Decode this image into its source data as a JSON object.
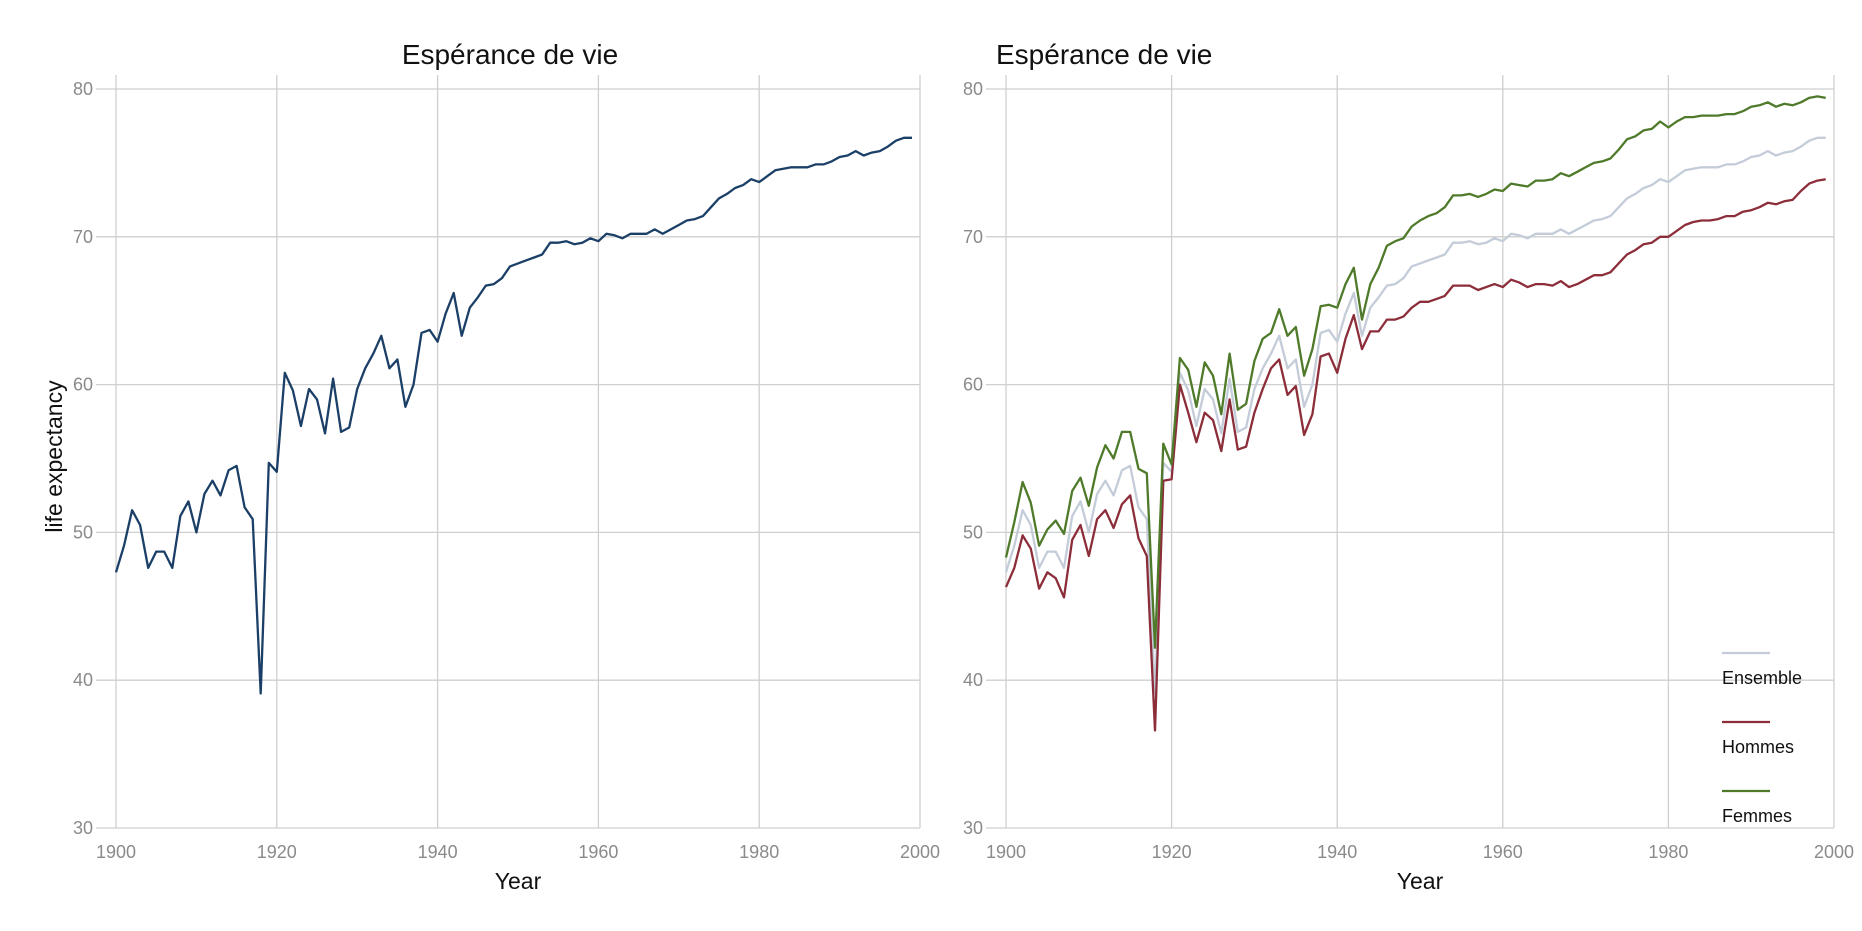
{
  "chart_data": [
    {
      "type": "line",
      "title": "Espérance de vie",
      "xlabel": "Year",
      "ylabel": "life expectancy",
      "xlim": [
        1900,
        2000
      ],
      "ylim": [
        30,
        80
      ],
      "x_ticks": [
        "1900",
        "1920",
        "1940",
        "1960",
        "1980",
        "2000"
      ],
      "y_ticks": [
        "30",
        "40",
        "50",
        "60",
        "70",
        "80"
      ],
      "grid": true,
      "legend": "none",
      "series": [
        {
          "color": "#1b3f66",
          "x": [
            1900,
            1901,
            1902,
            1903,
            1904,
            1905,
            1906,
            1907,
            1908,
            1909,
            1910,
            1911,
            1912,
            1913,
            1914,
            1915,
            1916,
            1917,
            1918,
            1919,
            1920,
            1921,
            1922,
            1923,
            1924,
            1925,
            1926,
            1927,
            1928,
            1929,
            1930,
            1931,
            1932,
            1933,
            1934,
            1935,
            1936,
            1937,
            1938,
            1939,
            1940,
            1941,
            1942,
            1943,
            1944,
            1945,
            1946,
            1947,
            1948,
            1949,
            1950,
            1951,
            1952,
            1953,
            1954,
            1955,
            1956,
            1957,
            1958,
            1959,
            1960,
            1961,
            1962,
            1963,
            1964,
            1965,
            1966,
            1967,
            1968,
            1969,
            1970,
            1971,
            1972,
            1973,
            1974,
            1975,
            1976,
            1977,
            1978,
            1979,
            1980,
            1981,
            1982,
            1983,
            1984,
            1985,
            1986,
            1987,
            1988,
            1989,
            1990,
            1991,
            1992,
            1993,
            1994,
            1995,
            1996,
            1997,
            1998,
            1999
          ],
          "values": [
            47.3,
            49.1,
            51.5,
            50.5,
            47.6,
            48.7,
            48.7,
            47.6,
            51.1,
            52.1,
            50.0,
            52.6,
            53.5,
            52.5,
            54.2,
            54.5,
            51.7,
            50.9,
            39.1,
            54.7,
            54.1,
            60.8,
            59.6,
            57.2,
            59.7,
            59.0,
            56.7,
            60.4,
            56.8,
            57.1,
            59.7,
            61.1,
            62.1,
            63.3,
            61.1,
            61.7,
            58.5,
            60.0,
            63.5,
            63.7,
            62.9,
            64.8,
            66.2,
            63.3,
            65.2,
            65.9,
            66.7,
            66.8,
            67.2,
            68.0,
            68.2,
            68.4,
            68.6,
            68.8,
            69.6,
            69.6,
            69.7,
            69.5,
            69.6,
            69.9,
            69.7,
            70.2,
            70.1,
            69.9,
            70.2,
            70.2,
            70.2,
            70.5,
            70.2,
            70.5,
            70.8,
            71.1,
            71.2,
            71.4,
            72.0,
            72.6,
            72.9,
            73.3,
            73.5,
            73.9,
            73.7,
            74.1,
            74.5,
            74.6,
            74.7,
            74.7,
            74.7,
            74.9,
            74.9,
            75.1,
            75.4,
            75.5,
            75.8,
            75.5,
            75.7,
            75.8,
            76.1,
            76.5,
            76.7,
            76.7
          ]
        }
      ]
    },
    {
      "type": "line",
      "title": "Espérance de vie",
      "xlabel": "Year",
      "ylabel": "",
      "xlim": [
        1900,
        2000
      ],
      "ylim": [
        30,
        80
      ],
      "x_ticks": [
        "1900",
        "1920",
        "1940",
        "1960",
        "1980",
        "2000"
      ],
      "y_ticks": [
        "30",
        "40",
        "50",
        "60",
        "70",
        "80"
      ],
      "grid": true,
      "legend": "bottom-right",
      "series": [
        {
          "name": "Ensemble",
          "color": "#c3ccd8",
          "x": [
            1900,
            1901,
            1902,
            1903,
            1904,
            1905,
            1906,
            1907,
            1908,
            1909,
            1910,
            1911,
            1912,
            1913,
            1914,
            1915,
            1916,
            1917,
            1918,
            1919,
            1920,
            1921,
            1922,
            1923,
            1924,
            1925,
            1926,
            1927,
            1928,
            1929,
            1930,
            1931,
            1932,
            1933,
            1934,
            1935,
            1936,
            1937,
            1938,
            1939,
            1940,
            1941,
            1942,
            1943,
            1944,
            1945,
            1946,
            1947,
            1948,
            1949,
            1950,
            1951,
            1952,
            1953,
            1954,
            1955,
            1956,
            1957,
            1958,
            1959,
            1960,
            1961,
            1962,
            1963,
            1964,
            1965,
            1966,
            1967,
            1968,
            1969,
            1970,
            1971,
            1972,
            1973,
            1974,
            1975,
            1976,
            1977,
            1978,
            1979,
            1980,
            1981,
            1982,
            1983,
            1984,
            1985,
            1986,
            1987,
            1988,
            1989,
            1990,
            1991,
            1992,
            1993,
            1994,
            1995,
            1996,
            1997,
            1998,
            1999
          ],
          "values": [
            47.3,
            49.1,
            51.5,
            50.5,
            47.6,
            48.7,
            48.7,
            47.6,
            51.1,
            52.1,
            50.0,
            52.6,
            53.5,
            52.5,
            54.2,
            54.5,
            51.7,
            50.9,
            39.1,
            54.7,
            54.1,
            60.8,
            59.6,
            57.2,
            59.7,
            59.0,
            56.7,
            60.4,
            56.8,
            57.1,
            59.7,
            61.1,
            62.1,
            63.3,
            61.1,
            61.7,
            58.5,
            60.0,
            63.5,
            63.7,
            62.9,
            64.8,
            66.2,
            63.3,
            65.2,
            65.9,
            66.7,
            66.8,
            67.2,
            68.0,
            68.2,
            68.4,
            68.6,
            68.8,
            69.6,
            69.6,
            69.7,
            69.5,
            69.6,
            69.9,
            69.7,
            70.2,
            70.1,
            69.9,
            70.2,
            70.2,
            70.2,
            70.5,
            70.2,
            70.5,
            70.8,
            71.1,
            71.2,
            71.4,
            72.0,
            72.6,
            72.9,
            73.3,
            73.5,
            73.9,
            73.7,
            74.1,
            74.5,
            74.6,
            74.7,
            74.7,
            74.7,
            74.9,
            74.9,
            75.1,
            75.4,
            75.5,
            75.8,
            75.5,
            75.7,
            75.8,
            76.1,
            76.5,
            76.7,
            76.7
          ]
        },
        {
          "name": "Hommes",
          "color": "#8c2d3a",
          "x": [
            1900,
            1901,
            1902,
            1903,
            1904,
            1905,
            1906,
            1907,
            1908,
            1909,
            1910,
            1911,
            1912,
            1913,
            1914,
            1915,
            1916,
            1917,
            1918,
            1919,
            1920,
            1921,
            1922,
            1923,
            1924,
            1925,
            1926,
            1927,
            1928,
            1929,
            1930,
            1931,
            1932,
            1933,
            1934,
            1935,
            1936,
            1937,
            1938,
            1939,
            1940,
            1941,
            1942,
            1943,
            1944,
            1945,
            1946,
            1947,
            1948,
            1949,
            1950,
            1951,
            1952,
            1953,
            1954,
            1955,
            1956,
            1957,
            1958,
            1959,
            1960,
            1961,
            1962,
            1963,
            1964,
            1965,
            1966,
            1967,
            1968,
            1969,
            1970,
            1971,
            1972,
            1973,
            1974,
            1975,
            1976,
            1977,
            1978,
            1979,
            1980,
            1981,
            1982,
            1983,
            1984,
            1985,
            1986,
            1987,
            1988,
            1989,
            1990,
            1991,
            1992,
            1993,
            1994,
            1995,
            1996,
            1997,
            1998,
            1999
          ],
          "values": [
            46.3,
            47.6,
            49.8,
            48.9,
            46.2,
            47.3,
            46.9,
            45.6,
            49.5,
            50.5,
            48.4,
            50.9,
            51.5,
            50.3,
            51.9,
            52.5,
            49.6,
            48.4,
            36.6,
            53.5,
            53.6,
            60.0,
            58.1,
            56.1,
            58.1,
            57.6,
            55.5,
            59.0,
            55.6,
            55.8,
            58.1,
            59.7,
            61.1,
            61.7,
            59.3,
            59.9,
            56.6,
            58.0,
            61.9,
            62.1,
            60.8,
            63.1,
            64.7,
            62.4,
            63.6,
            63.6,
            64.4,
            64.4,
            64.6,
            65.2,
            65.6,
            65.6,
            65.8,
            66.0,
            66.7,
            66.7,
            66.7,
            66.4,
            66.6,
            66.8,
            66.6,
            67.1,
            66.9,
            66.6,
            66.8,
            66.8,
            66.7,
            67.0,
            66.6,
            66.8,
            67.1,
            67.4,
            67.4,
            67.6,
            68.2,
            68.8,
            69.1,
            69.5,
            69.6,
            70.0,
            70.0,
            70.4,
            70.8,
            71.0,
            71.1,
            71.1,
            71.2,
            71.4,
            71.4,
            71.7,
            71.8,
            72.0,
            72.3,
            72.2,
            72.4,
            72.5,
            73.1,
            73.6,
            73.8,
            73.9
          ]
        },
        {
          "name": "Femmes",
          "color": "#4e7a2a",
          "x": [
            1900,
            1901,
            1902,
            1903,
            1904,
            1905,
            1906,
            1907,
            1908,
            1909,
            1910,
            1911,
            1912,
            1913,
            1914,
            1915,
            1916,
            1917,
            1918,
            1919,
            1920,
            1921,
            1922,
            1923,
            1924,
            1925,
            1926,
            1927,
            1928,
            1929,
            1930,
            1931,
            1932,
            1933,
            1934,
            1935,
            1936,
            1937,
            1938,
            1939,
            1940,
            1941,
            1942,
            1943,
            1944,
            1945,
            1946,
            1947,
            1948,
            1949,
            1950,
            1951,
            1952,
            1953,
            1954,
            1955,
            1956,
            1957,
            1958,
            1959,
            1960,
            1961,
            1962,
            1963,
            1964,
            1965,
            1966,
            1967,
            1968,
            1969,
            1970,
            1971,
            1972,
            1973,
            1974,
            1975,
            1976,
            1977,
            1978,
            1979,
            1980,
            1981,
            1982,
            1983,
            1984,
            1985,
            1986,
            1987,
            1988,
            1989,
            1990,
            1991,
            1992,
            1993,
            1994,
            1995,
            1996,
            1997,
            1998,
            1999
          ],
          "values": [
            48.3,
            50.7,
            53.4,
            52.0,
            49.1,
            50.2,
            50.8,
            49.9,
            52.8,
            53.7,
            51.8,
            54.4,
            55.9,
            55.0,
            56.8,
            56.8,
            54.3,
            54.0,
            42.2,
            56.0,
            54.6,
            61.8,
            61.0,
            58.5,
            61.5,
            60.6,
            58.0,
            62.1,
            58.3,
            58.7,
            61.6,
            63.1,
            63.5,
            65.1,
            63.3,
            63.9,
            60.6,
            62.4,
            65.3,
            65.4,
            65.2,
            66.8,
            67.9,
            64.4,
            66.8,
            67.9,
            69.4,
            69.7,
            69.9,
            70.7,
            71.1,
            71.4,
            71.6,
            72.0,
            72.8,
            72.8,
            72.9,
            72.7,
            72.9,
            73.2,
            73.1,
            73.6,
            73.5,
            73.4,
            73.8,
            73.8,
            73.9,
            74.3,
            74.1,
            74.4,
            74.7,
            75.0,
            75.1,
            75.3,
            75.9,
            76.6,
            76.8,
            77.2,
            77.3,
            77.8,
            77.4,
            77.8,
            78.1,
            78.1,
            78.2,
            78.2,
            78.2,
            78.3,
            78.3,
            78.5,
            78.8,
            78.9,
            79.1,
            78.8,
            79.0,
            78.9,
            79.1,
            79.4,
            79.5,
            79.4
          ]
        }
      ]
    }
  ]
}
